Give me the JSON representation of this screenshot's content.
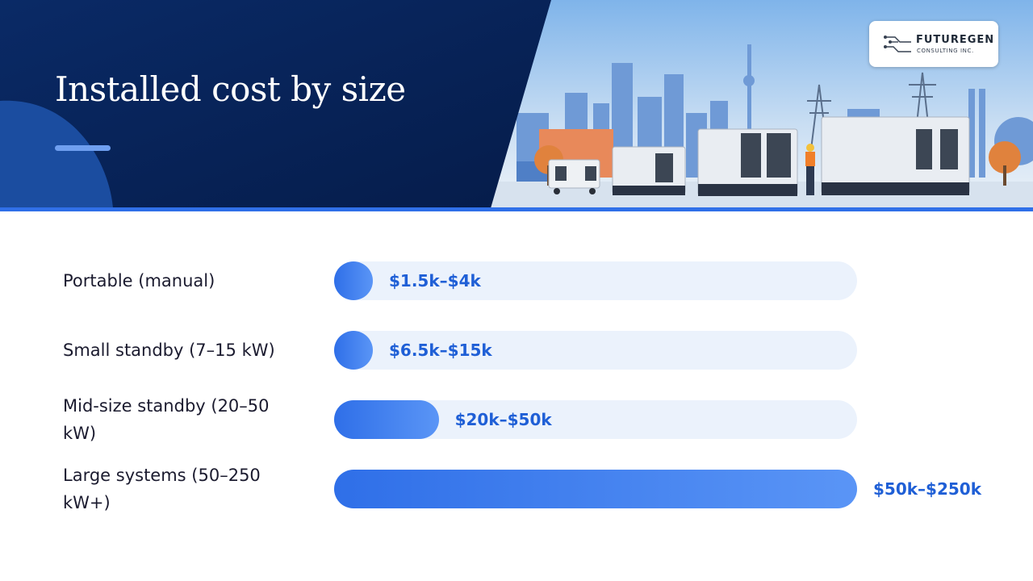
{
  "header": {
    "title": "Installed cost by size",
    "logo": {
      "name": "FUTUREGEN",
      "subtitle": "CONSULTING INC.",
      "icon": "circuit-icon"
    },
    "illustration": "city-generators-illustration"
  },
  "colors": {
    "navy": "#0a2a66",
    "accent": "#2f6fe8",
    "track": "#ebf2fc",
    "value_text": "#1f5fd6"
  },
  "chart_data": {
    "type": "bar",
    "orientation": "horizontal",
    "title": "",
    "categories": [
      "Portable (manual)",
      "Small standby (7–15 kW)",
      "Mid-size standby (20–50 kW)",
      "Large systems (50–250 kW+)"
    ],
    "values": [
      4,
      15,
      50,
      250
    ],
    "data_labels": [
      "$1.5k–$4k",
      "$6.5k–$15k",
      "$20k–$50k",
      "$50k–$250k"
    ],
    "xlim": [
      0,
      250
    ],
    "grid": false
  }
}
